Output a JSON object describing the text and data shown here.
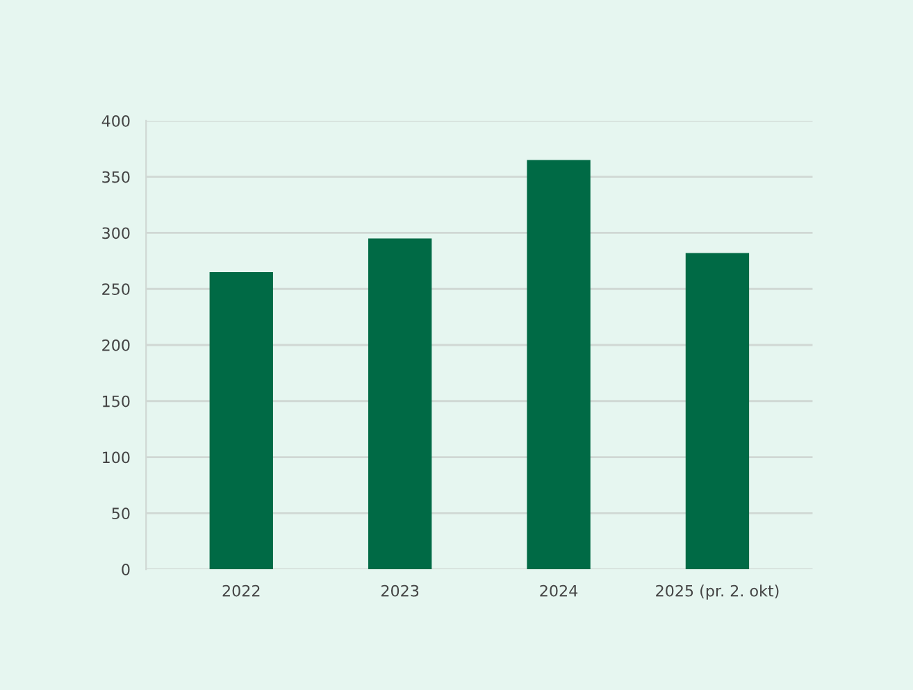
{
  "chart_data": {
    "type": "bar",
    "categories": [
      "2022",
      "2023",
      "2024",
      "2025 (pr. 2. okt)"
    ],
    "values": [
      265,
      295,
      365,
      282
    ],
    "color": "#006a45",
    "ylim": [
      0,
      400
    ],
    "yticks": [
      0,
      50,
      100,
      150,
      200,
      250,
      300,
      350,
      400
    ],
    "grid": "y",
    "legend": false
  }
}
